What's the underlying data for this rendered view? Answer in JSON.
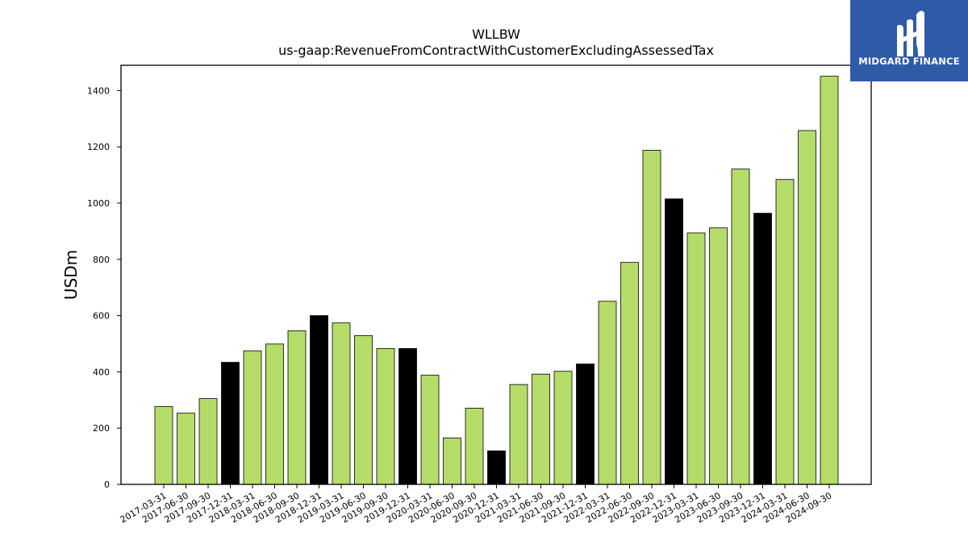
{
  "chart_data": {
    "type": "bar",
    "title": "WLLBW",
    "subtitle": "us-gaap:RevenueFromContractWithCustomerExcludingAssessedTax",
    "xlabel": "",
    "ylabel": "USDm",
    "ylim": [
      0,
      1490
    ],
    "yticks": [
      0,
      200,
      400,
      600,
      800,
      1000,
      1200,
      1400
    ],
    "grid": false,
    "categories": [
      "2017-03-31",
      "2017-06-30",
      "2017-09-30",
      "2017-12-31",
      "2018-03-31",
      "2018-06-30",
      "2018-09-30",
      "2018-12-31",
      "2019-03-31",
      "2019-06-30",
      "2019-09-30",
      "2019-12-31",
      "2020-03-31",
      "2020-06-30",
      "2020-09-30",
      "2020-12-31",
      "2021-03-31",
      "2021-06-30",
      "2021-09-30",
      "2021-12-31",
      "2022-03-31",
      "2022-06-30",
      "2022-09-30",
      "2022-12-31",
      "2023-03-31",
      "2023-06-30",
      "2023-09-30",
      "2023-12-31",
      "2024-03-31",
      "2024-06-30",
      "2024-09-30"
    ],
    "values": [
      277,
      253,
      305,
      434,
      475,
      499,
      546,
      600,
      574,
      529,
      483,
      483,
      388,
      165,
      271,
      119,
      355,
      392,
      402,
      428,
      651,
      789,
      1188,
      1015,
      894,
      912,
      1121,
      964,
      1084,
      1258,
      1451
    ],
    "colors": [
      "#b5dc68",
      "#b5dc68",
      "#b5dc68",
      "#000000",
      "#b5dc68",
      "#b5dc68",
      "#b5dc68",
      "#000000",
      "#b5dc68",
      "#b5dc68",
      "#b5dc68",
      "#000000",
      "#b5dc68",
      "#b5dc68",
      "#b5dc68",
      "#000000",
      "#b5dc68",
      "#b5dc68",
      "#b5dc68",
      "#000000",
      "#b5dc68",
      "#b5dc68",
      "#b5dc68",
      "#000000",
      "#b5dc68",
      "#b5dc68",
      "#b5dc68",
      "#000000",
      "#b5dc68",
      "#b5dc68",
      "#b5dc68"
    ]
  },
  "logo": {
    "name": "MIDGARD FINANCE",
    "background": "#2f5aa8",
    "icon": "midgard-logo-icon"
  }
}
